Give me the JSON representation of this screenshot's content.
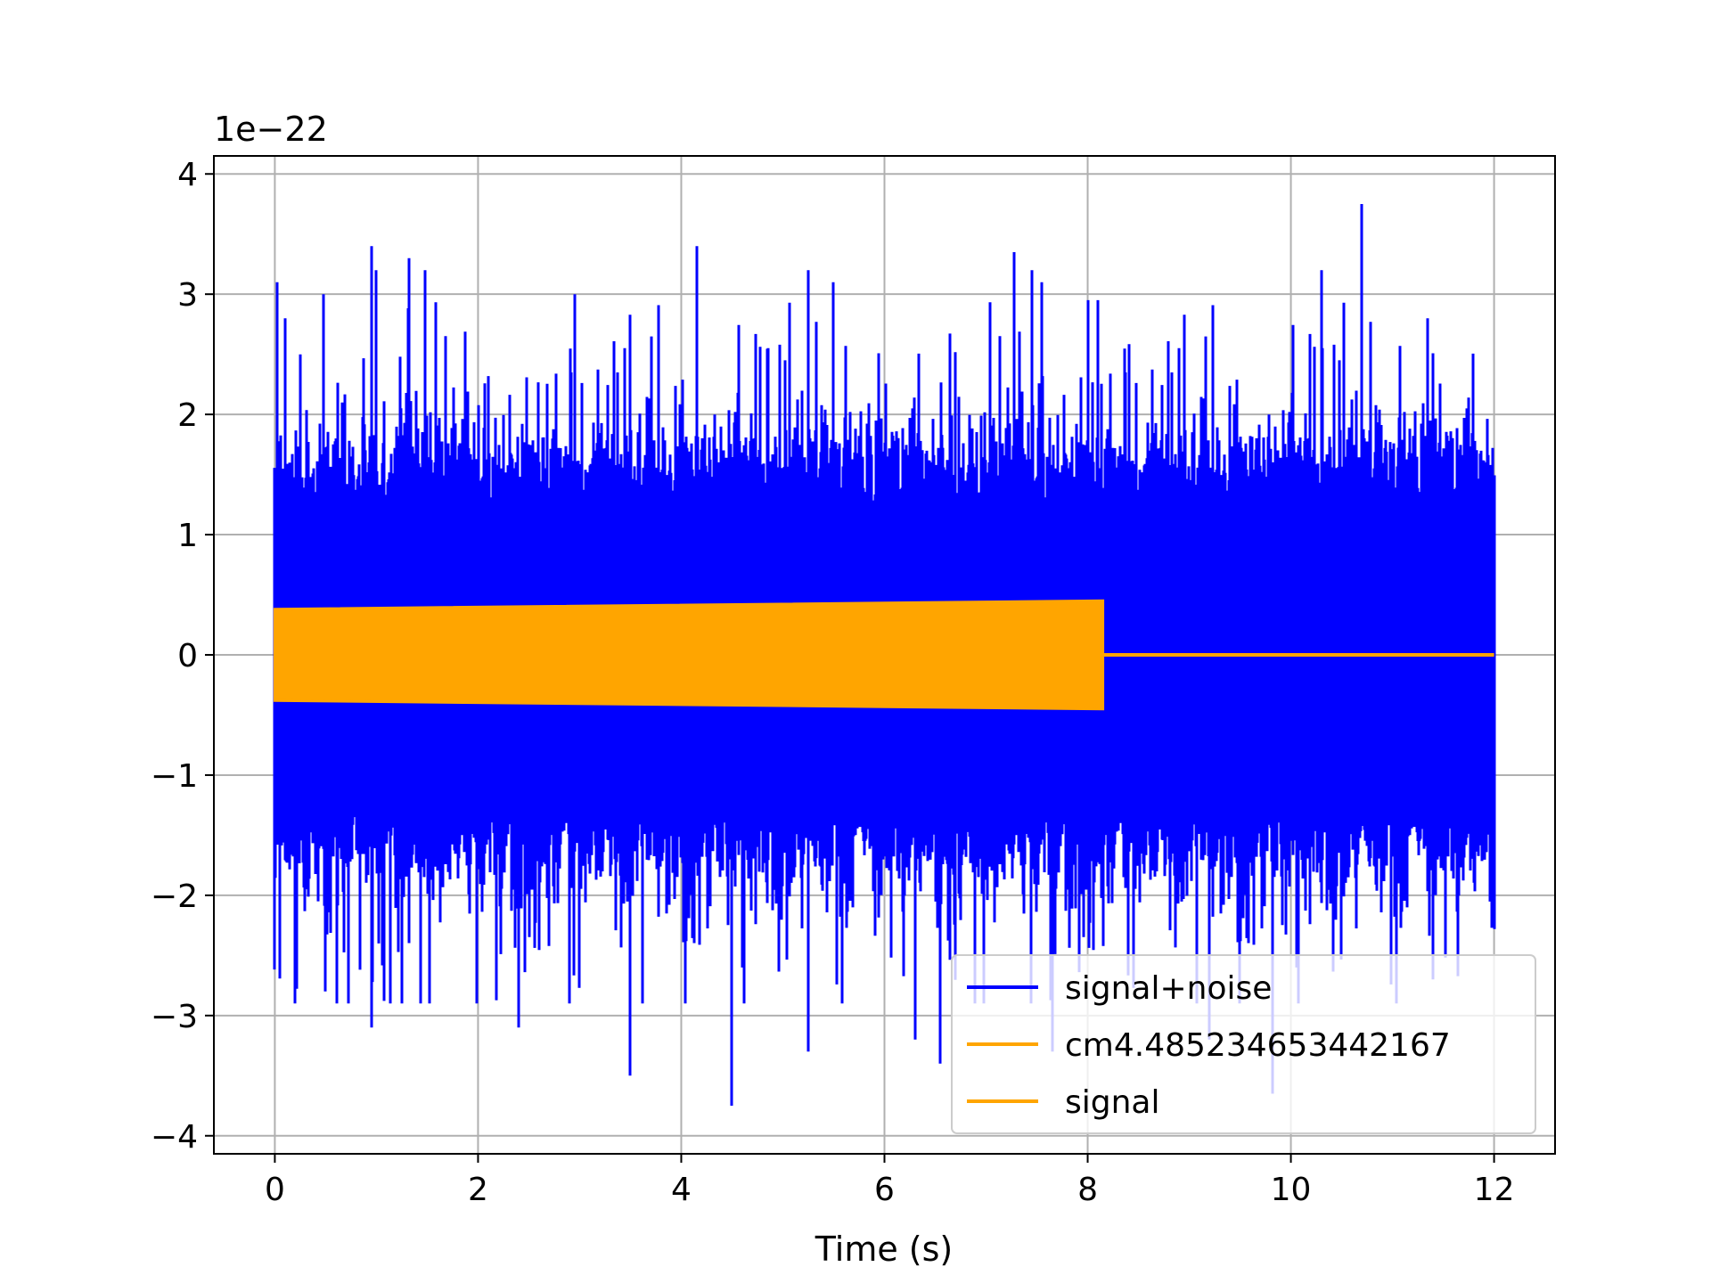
{
  "chart_data": {
    "type": "line",
    "title": "",
    "xlabel": "Time (s)",
    "ylabel": "",
    "y_offset_label": "1e−22",
    "xlim": [
      -0.6,
      12.6
    ],
    "ylim": [
      -4.15,
      4.15
    ],
    "xticks": [
      0,
      2,
      4,
      6,
      8,
      10,
      12
    ],
    "xtick_labels": [
      "0",
      "2",
      "4",
      "6",
      "8",
      "10",
      "12"
    ],
    "yticks": [
      -4,
      -3,
      -2,
      -1,
      0,
      1,
      2,
      3,
      4
    ],
    "ytick_labels": [
      "−4",
      "−3",
      "−2",
      "−1",
      "0",
      "1",
      "2",
      "3",
      "4"
    ],
    "grid": true,
    "legend_position": "lower right",
    "series": [
      {
        "name": "signal+noise",
        "color": "#0000ff",
        "kind": "noise-envelope",
        "x_range": [
          0,
          12
        ],
        "core_amplitude": 1.4,
        "peaks": [
          [
            0.02,
            3.1
          ],
          [
            0.1,
            2.8
          ],
          [
            0.25,
            2.5
          ],
          [
            0.95,
            3.4
          ],
          [
            1.0,
            3.2
          ],
          [
            1.32,
            3.3
          ],
          [
            1.48,
            3.2
          ],
          [
            2.95,
            3.0
          ],
          [
            4.15,
            3.4
          ],
          [
            5.25,
            3.2
          ],
          [
            5.5,
            3.1
          ],
          [
            7.28,
            3.35
          ],
          [
            7.45,
            3.2
          ],
          [
            7.55,
            3.1
          ],
          [
            8.0,
            2.95
          ],
          [
            8.1,
            2.95
          ],
          [
            10.3,
            3.2
          ],
          [
            10.7,
            3.75
          ],
          [
            11.35,
            2.8
          ],
          [
            0.5,
            -2.8
          ],
          [
            0.95,
            -3.1
          ],
          [
            1.25,
            -2.9
          ],
          [
            2.4,
            -3.1
          ],
          [
            2.9,
            -2.9
          ],
          [
            3.5,
            -3.5
          ],
          [
            4.5,
            -3.75
          ],
          [
            5.25,
            -3.3
          ],
          [
            6.3,
            -3.2
          ],
          [
            6.55,
            -3.4
          ],
          [
            7.65,
            -3.3
          ],
          [
            9.2,
            -3.2
          ],
          [
            9.82,
            -3.65
          ],
          [
            11.4,
            -2.7
          ]
        ]
      },
      {
        "name": "cm4.485234653442167",
        "color": "#ffa500",
        "kind": "chirp-envelope",
        "x_range": [
          0,
          8.15
        ],
        "amplitude_start": 0.38,
        "amplitude_end": 0.45
      },
      {
        "name": "signal",
        "color": "#ffa500",
        "kind": "flat",
        "x_range": [
          8.15,
          12
        ],
        "value": 0
      }
    ]
  }
}
